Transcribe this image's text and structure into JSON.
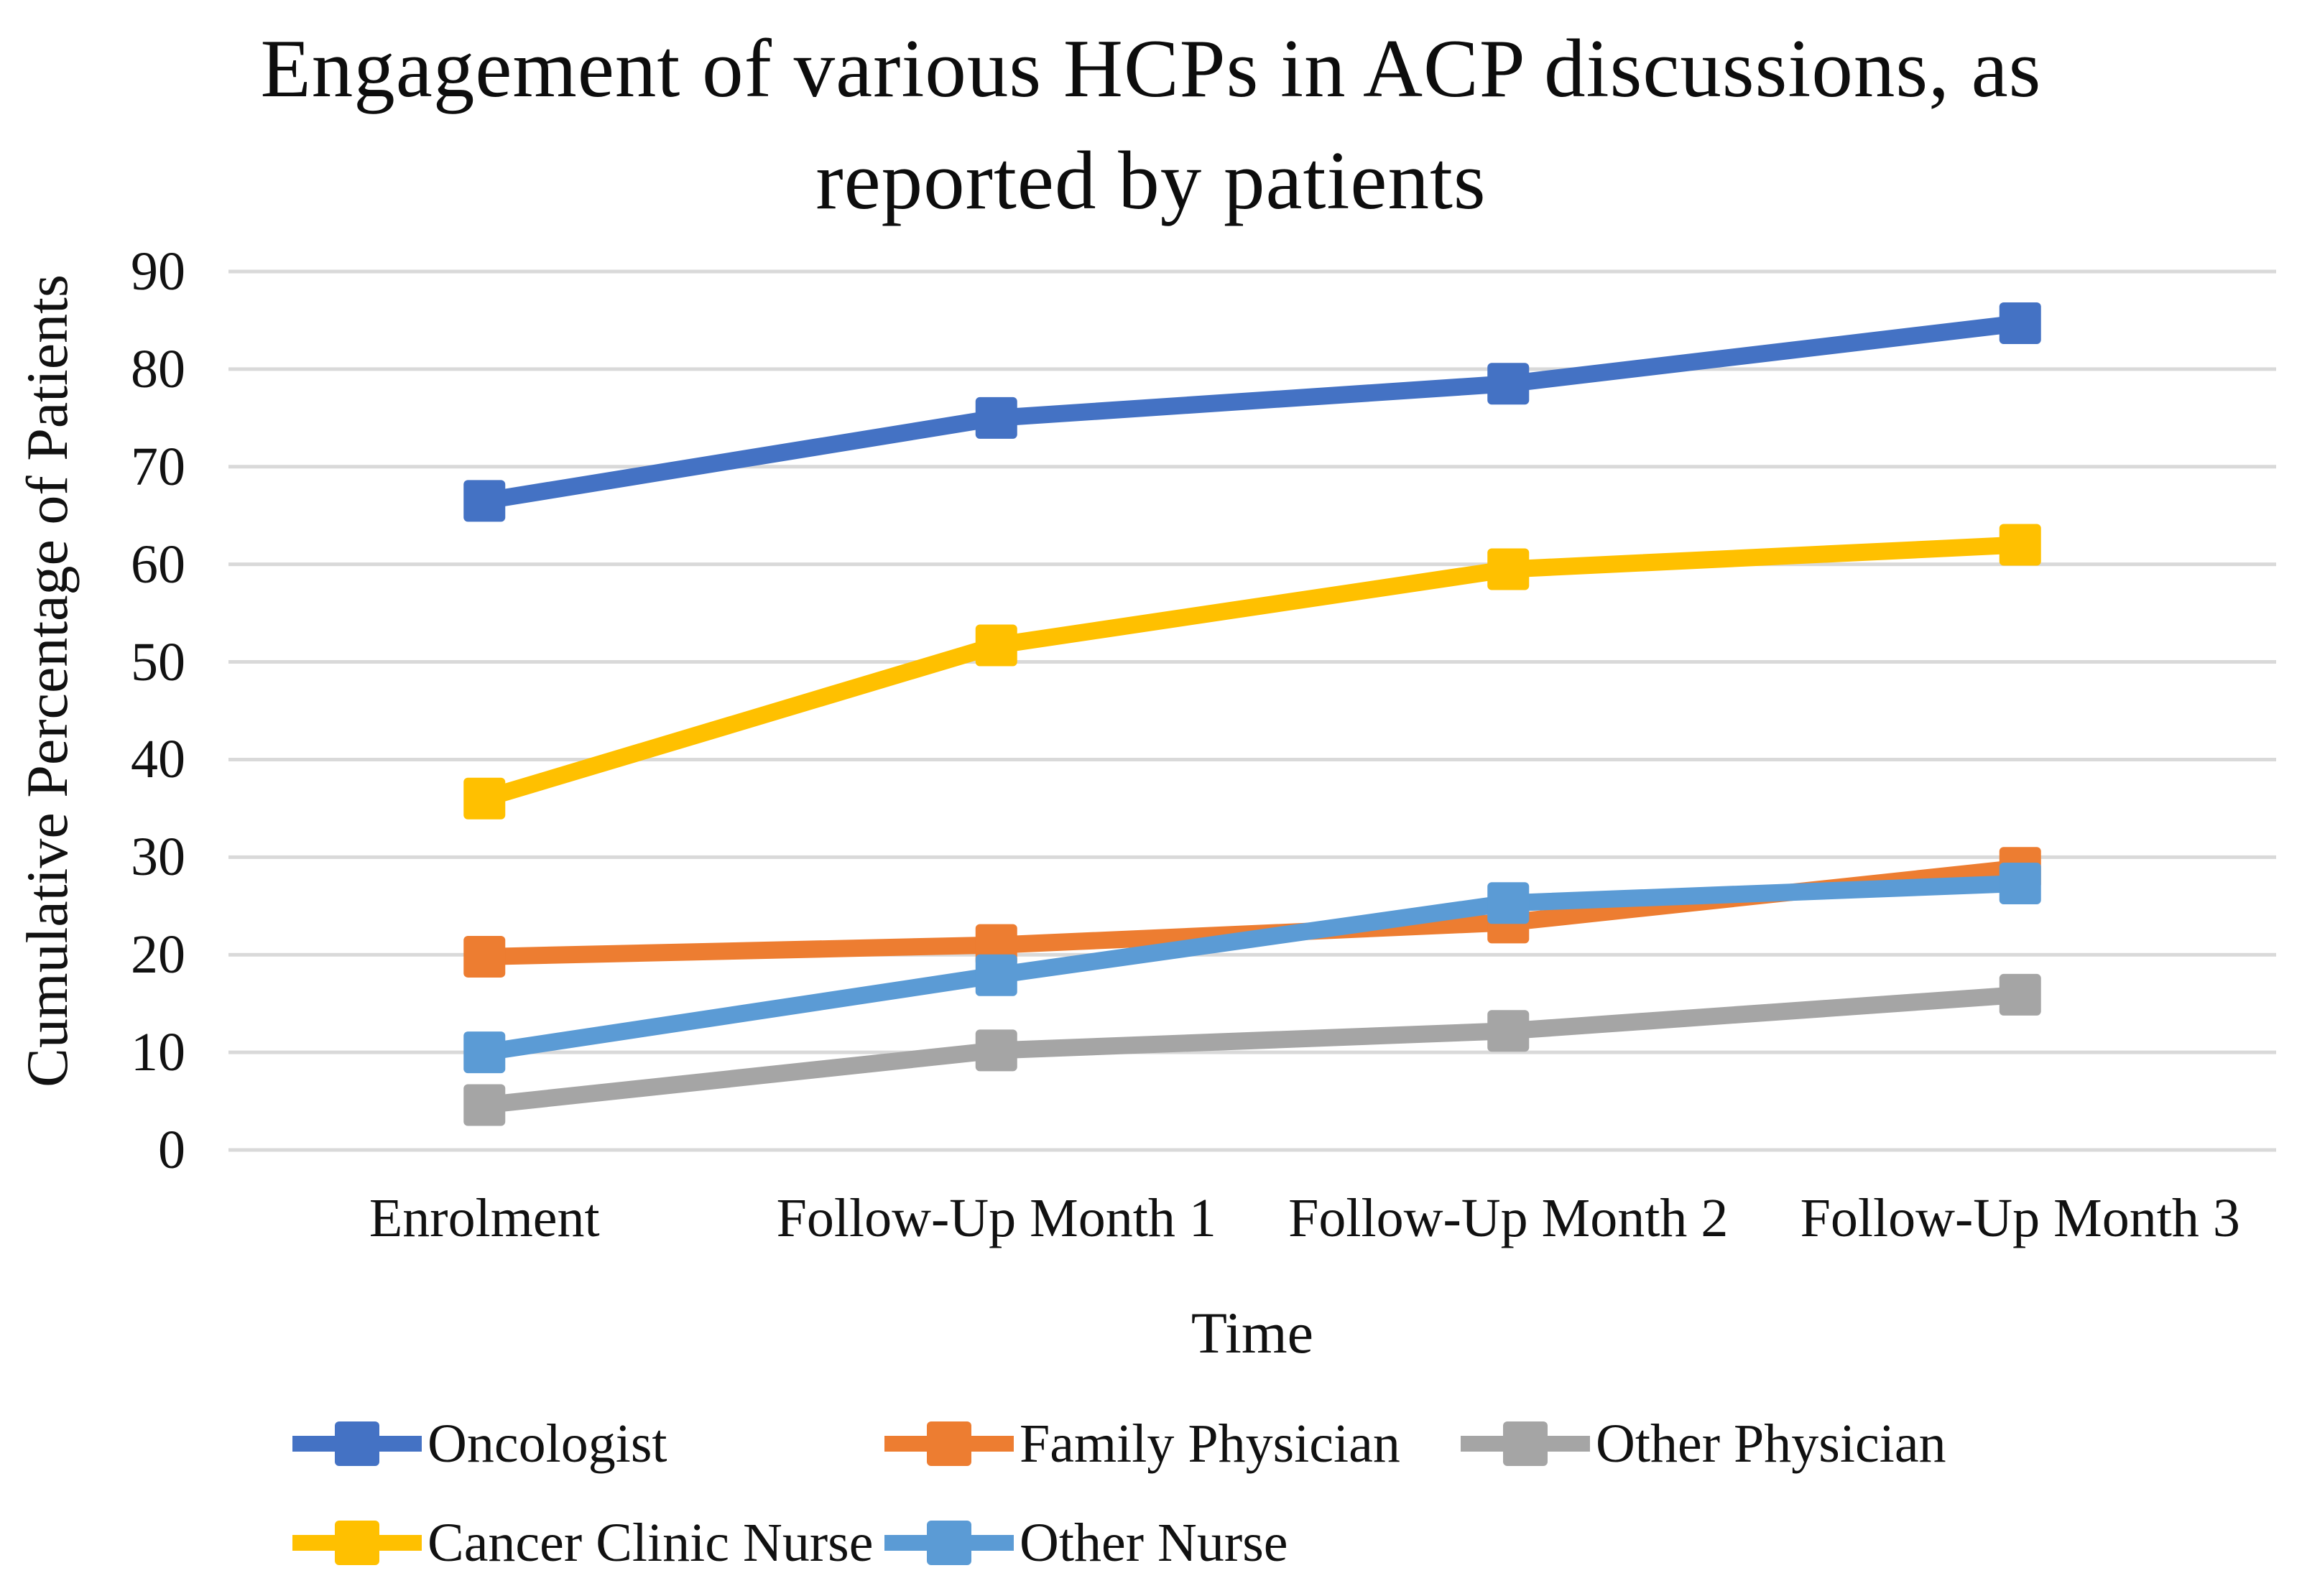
{
  "chart_data": {
    "type": "line",
    "title": "Engagement of various HCPs in ACP discussions, as reported by patients",
    "title_lines": [
      "Engagement of various HCPs in ACP discussions, as",
      "reported by patients"
    ],
    "xlabel": "Time",
    "ylabel": "Cumulative Percentage of Patients",
    "categories": [
      "Enrolment",
      "Follow-Up Month 1",
      "Follow-Up Month 2",
      "Follow-Up Month 3"
    ],
    "series": [
      {
        "name": "Oncologist",
        "color": "#4472C4",
        "marker": "square",
        "values": [
          66.5,
          75.0,
          78.5,
          84.7
        ]
      },
      {
        "name": "Family Physician",
        "color": "#ED7D31",
        "marker": "square",
        "values": [
          19.8,
          21.0,
          23.3,
          28.9
        ]
      },
      {
        "name": "Other Physician",
        "color": "#A5A5A5",
        "marker": "square",
        "values": [
          4.6,
          10.2,
          12.2,
          15.9
        ]
      },
      {
        "name": "Cancer Clinic Nurse",
        "color": "#FFC000",
        "marker": "square",
        "values": [
          36.0,
          51.7,
          59.5,
          62.0
        ]
      },
      {
        "name": "Other Nurse",
        "color": "#5B9BD5",
        "marker": "square",
        "values": [
          10.0,
          17.9,
          25.3,
          27.3
        ]
      }
    ],
    "ylim": [
      0,
      90
    ],
    "ytick_step": 10,
    "yticks": [
      90,
      80,
      70,
      60,
      50,
      40,
      30,
      20,
      10,
      0
    ],
    "grid": true,
    "gridline_color": "#D9D9D9",
    "text_color": "#111111",
    "legend_position": "bottom",
    "legend_rows": [
      [
        "Oncologist",
        "Family Physician",
        "Other Physician"
      ],
      [
        "Cancer Clinic Nurse",
        "Other Nurse"
      ]
    ]
  }
}
